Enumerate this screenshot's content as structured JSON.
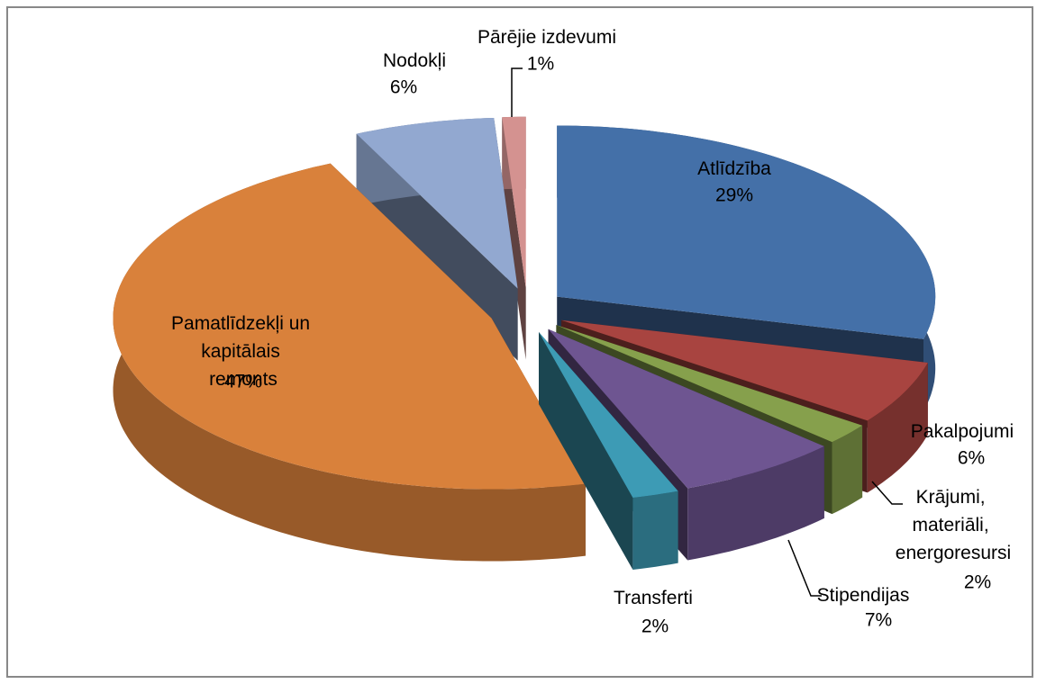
{
  "chart_data": {
    "type": "pie",
    "categories": [
      "Atlīdzība",
      "Pakalpojumi",
      "Krājumi, materiāli, energoresursi",
      "Stipendijas",
      "Transferti",
      "Pamatlīdzekļi un kapitālais remonts",
      "Nodokļi",
      "Pārējie izdevumi"
    ],
    "values": [
      29,
      6,
      2,
      7,
      2,
      47,
      6,
      1
    ],
    "value_labels": [
      "29%",
      "6%",
      "2%",
      "7%",
      "2%",
      "47%",
      "6%",
      "1%"
    ],
    "colors": [
      "#4470a8",
      "#a84440",
      "#86a04c",
      "#6e5591",
      "#3d9bb5",
      "#d9813b",
      "#92a8d0",
      "#d49290"
    ]
  }
}
